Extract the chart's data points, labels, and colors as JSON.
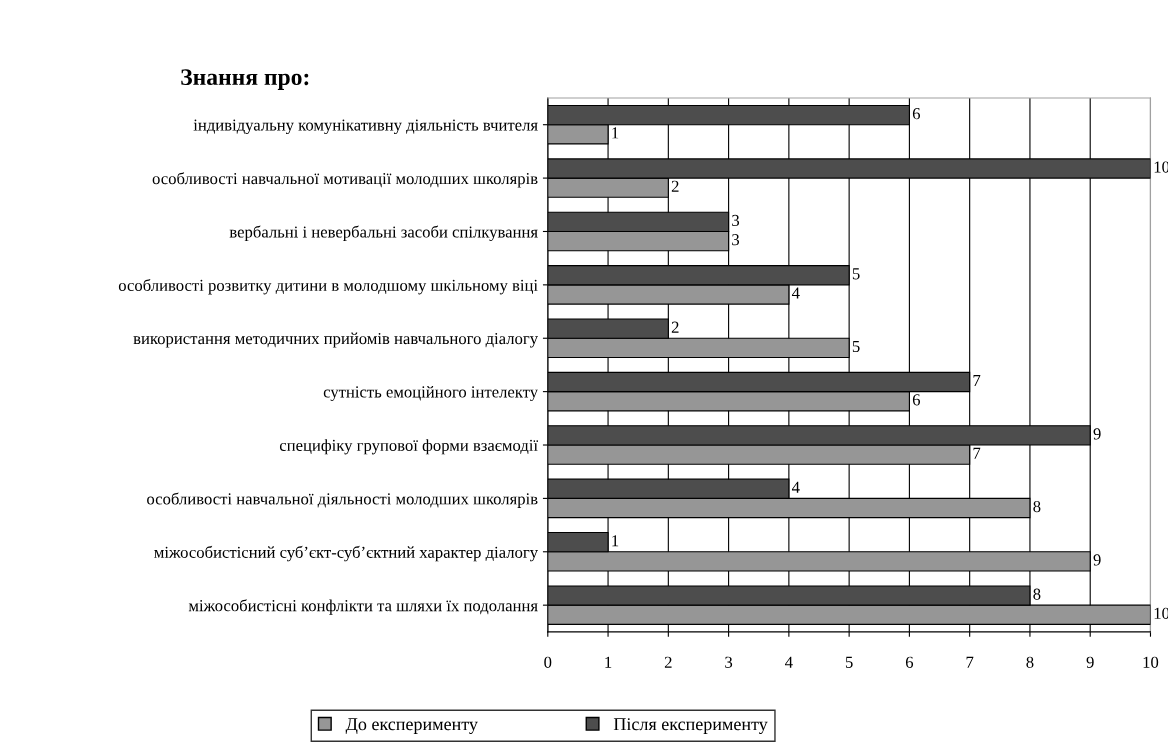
{
  "chart_data": {
    "type": "bar",
    "orientation": "horizontal",
    "title": "Знання про:",
    "categories": [
      "індивідуальну комунікативну діяльність вчителя",
      "особливості навчальної мотивації молодших школярів",
      "вербальні і невербальні засоби спілкування",
      "особливості розвитку дитини в молодшому шкільному віці",
      "використання методичних прийомів навчального діалогу",
      "сутність емоційного інтелекту",
      "специфіку групової форми взаємодії",
      "особливості навчальної діяльності молодших школярів",
      "міжособистісний суб’єкт-суб’єктний характер діалогу",
      "міжособистісні конфлікти та шляхи їх подолання"
    ],
    "series": [
      {
        "name": "До експерименту",
        "color": "#969696",
        "values": [
          1,
          2,
          3,
          4,
          5,
          6,
          7,
          8,
          9,
          10
        ]
      },
      {
        "name": "Після експерименту",
        "color": "#4d4d4d",
        "values": [
          6,
          10,
          3,
          5,
          2,
          7,
          9,
          4,
          1,
          8
        ]
      }
    ],
    "xlim": [
      0,
      10
    ],
    "xticks": [
      0,
      1,
      2,
      3,
      4,
      5,
      6,
      7,
      8,
      9,
      10
    ],
    "grid": "x",
    "legend": "bottom",
    "data_labels": true
  }
}
